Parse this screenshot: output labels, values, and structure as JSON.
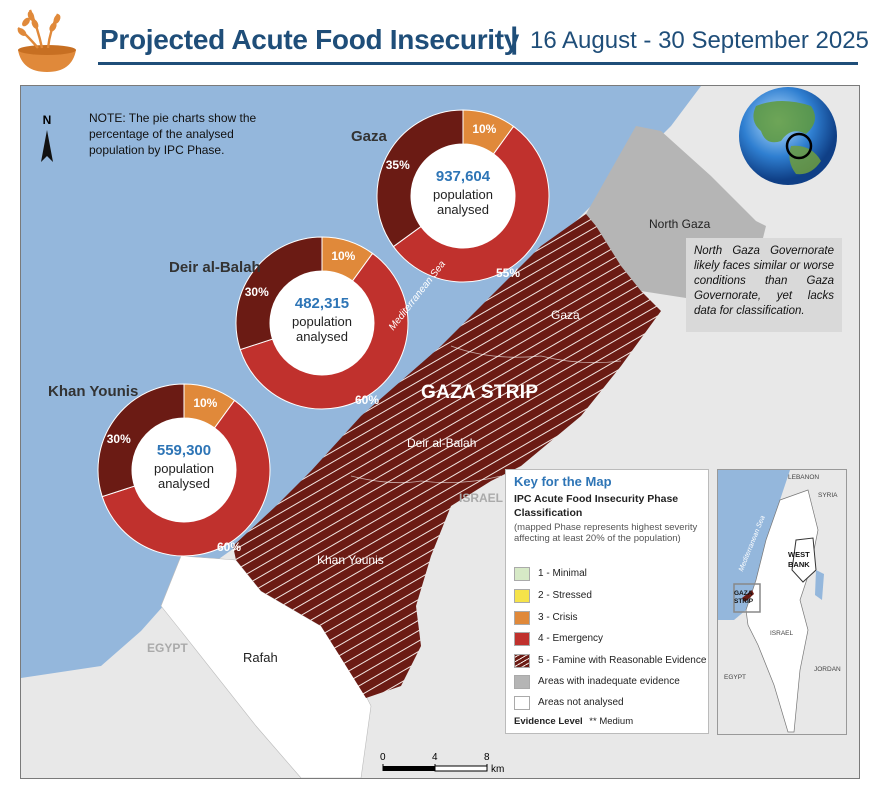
{
  "header": {
    "title": "Projected Acute Food Insecurity",
    "separator": "|",
    "date_range": "16 August - 30 September 2025"
  },
  "map": {
    "note": "NOTE: The pie charts show the percentage of the analysed population by IPC Phase.",
    "north_label": "N",
    "strip_label": "GAZA STRIP",
    "sea_label": "Mediterranean Sea",
    "place_labels": {
      "north_gaza": "North Gaza",
      "gaza": "Gaza",
      "deir_al_balah": "Deir al-Balah",
      "khan_younis": "Khan Younis",
      "rafah": "Rafah",
      "israel": "ISRAEL",
      "egypt": "EGYPT"
    },
    "callout": "North Gaza Governorate likely faces similar or worse conditions than Gaza Governorate, yet lacks data for classification."
  },
  "pies": [
    {
      "name": "Gaza",
      "population": "937,604",
      "sub": "population analysed",
      "crisis": 10,
      "emergency": 55,
      "famine": 35,
      "crisis_label": "10%",
      "emergency_label": "55%",
      "famine_label": "35%"
    },
    {
      "name": "Deir al-Balah",
      "population": "482,315",
      "sub": "population analysed",
      "crisis": 10,
      "emergency": 60,
      "famine": 30,
      "crisis_label": "10%",
      "emergency_label": "60%",
      "famine_label": "30%"
    },
    {
      "name": "Khan Younis",
      "population": "559,300",
      "sub": "population analysed",
      "crisis": 10,
      "emergency": 60,
      "famine": 30,
      "crisis_label": "10%",
      "emergency_label": "60%",
      "famine_label": "30%"
    }
  ],
  "legend": {
    "title": "Key for the Map",
    "subtitle": "IPC Acute Food Insecurity Phase Classification",
    "note": "(mapped Phase represents highest severity affecting at least 20% of the population)",
    "items": [
      {
        "label": "1 - Minimal",
        "color": "#d6e9c6"
      },
      {
        "label": "2 - Stressed",
        "color": "#f5e34a"
      },
      {
        "label": "3 - Crisis",
        "color": "#e0893a"
      },
      {
        "label": "4 - Emergency",
        "color": "#c0312d"
      },
      {
        "label": "5 - Famine with Reasonable Evidence",
        "color": "#6b1b14"
      },
      {
        "label": "Areas with inadequate evidence",
        "color": "#b5b5b5"
      },
      {
        "label": "Areas not analysed",
        "color": "#ffffff"
      }
    ],
    "evidence_label": "Evidence Level",
    "evidence_value": "** Medium"
  },
  "inset": {
    "lebanon": "LEBANON",
    "syria": "SYRIA",
    "west_bank": "WEST BANK",
    "gaza_strip": "GAZA STRIP",
    "israel": "ISRAEL",
    "jordan": "JORDAN",
    "egypt": "EGYPT",
    "sea": "Mediterranean Sea"
  },
  "scale": {
    "t0": "0",
    "t1": "4",
    "t2": "8",
    "unit": "km"
  },
  "colors": {
    "sea": "#94b7dc",
    "land": "#e8e8e8",
    "famine": "#6b1b14",
    "emergency": "#c0312d",
    "crisis": "#e0893a",
    "inadequate": "#b5b5b5",
    "title": "#1f4e79",
    "accent": "#2e75b6"
  }
}
